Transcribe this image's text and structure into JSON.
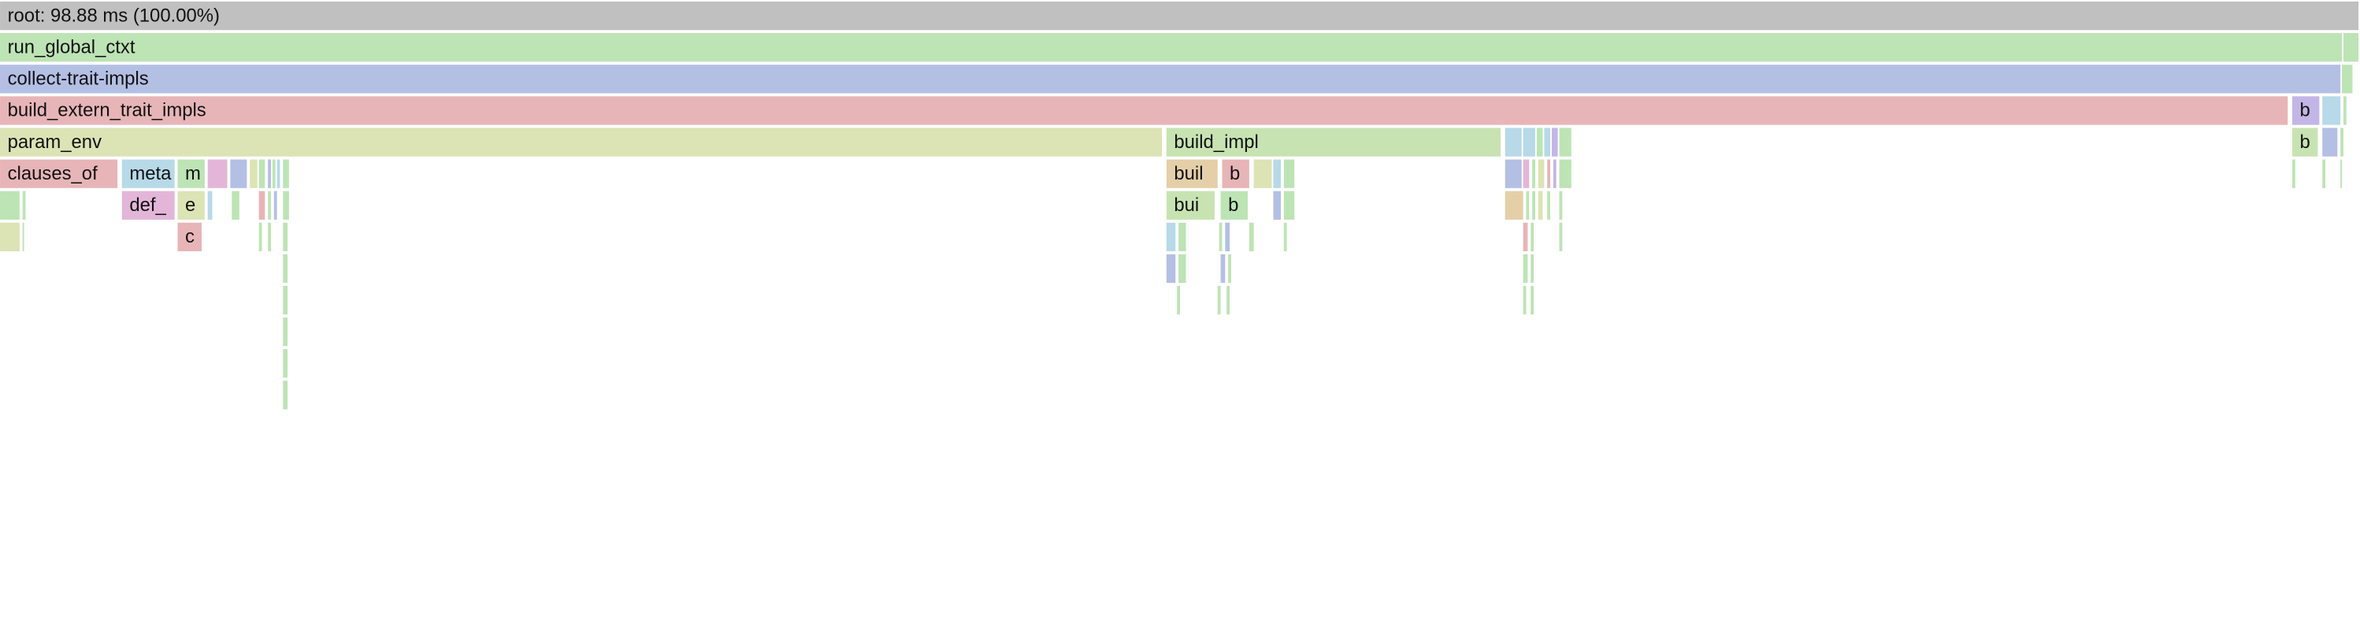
{
  "rows": [
    [
      "root: 98.88 ms (100.00%)"
    ],
    [
      "run_global_ctxt"
    ],
    [
      "collect-trait-impls"
    ],
    [
      "build_extern_trait_impls",
      "b"
    ],
    [
      "param_env",
      "build_impl",
      "b"
    ],
    [
      "clauses_of",
      "meta",
      "m",
      "buil",
      "b"
    ],
    [
      "def_",
      "e",
      "bui",
      "b"
    ],
    [
      "c"
    ]
  ]
}
